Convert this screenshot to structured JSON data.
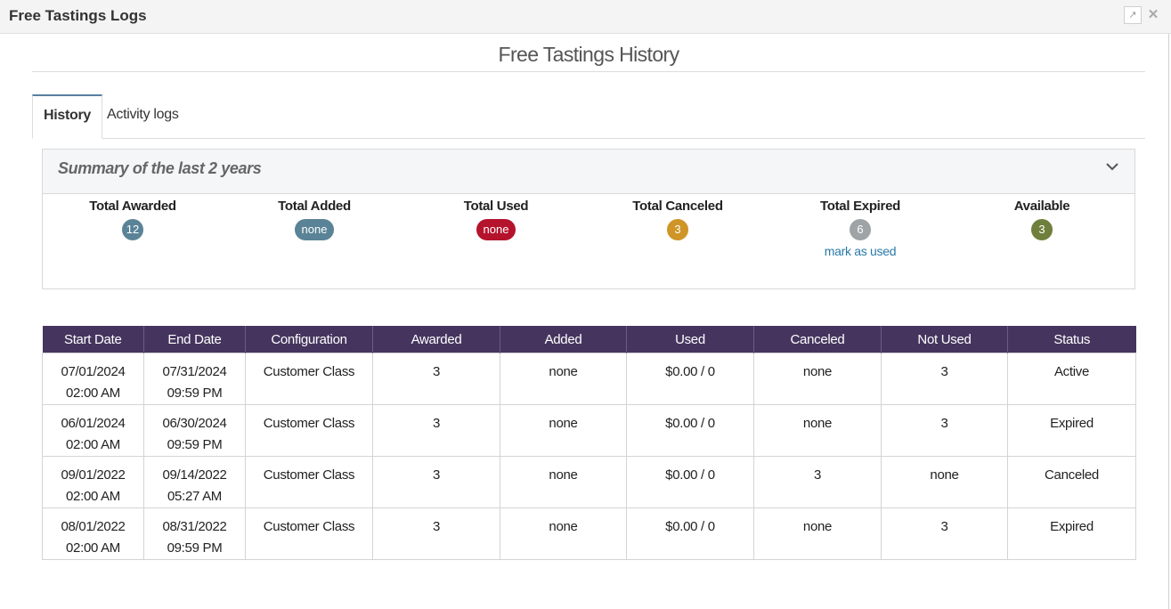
{
  "window": {
    "title": "Free Tastings Logs"
  },
  "page": {
    "heading": "Free Tastings History"
  },
  "tabs": [
    {
      "label": "History",
      "active": true
    },
    {
      "label": "Activity logs",
      "active": false
    }
  ],
  "summary": {
    "title": "Summary of the last 2 years",
    "stats": [
      {
        "label": "Total Awarded",
        "value": "12",
        "color": "#5a8397"
      },
      {
        "label": "Total Added",
        "value": "none",
        "color": "#5a8397"
      },
      {
        "label": "Total Used",
        "value": "none",
        "color": "#b5132c"
      },
      {
        "label": "Total Canceled",
        "value": "3",
        "color": "#cf9526"
      },
      {
        "label": "Total Expired",
        "value": "6",
        "color": "#9ea3a6",
        "link": "mark as used"
      },
      {
        "label": "Available",
        "value": "3",
        "color": "#6f7f3c"
      }
    ]
  },
  "table": {
    "header_color": "#45355e",
    "columns": [
      "Start Date",
      "End Date",
      "Configuration",
      "Awarded",
      "Added",
      "Used",
      "Canceled",
      "Not Used",
      "Status"
    ],
    "rows": [
      [
        "07/01/2024 02:00 AM",
        "07/31/2024 09:59 PM",
        "Customer Class",
        "3",
        "none",
        "$0.00 / 0",
        "none",
        "3",
        "Active"
      ],
      [
        "06/01/2024 02:00 AM",
        "06/30/2024 09:59 PM",
        "Customer Class",
        "3",
        "none",
        "$0.00 / 0",
        "none",
        "3",
        "Expired"
      ],
      [
        "09/01/2022 02:00 AM",
        "09/14/2022 05:27 AM",
        "Customer Class",
        "3",
        "none",
        "$0.00 / 0",
        "3",
        "none",
        "Canceled"
      ],
      [
        "08/01/2022 02:00 AM",
        "08/31/2022 09:59 PM",
        "Customer Class",
        "3",
        "none",
        "$0.00 / 0",
        "none",
        "3",
        "Expired"
      ]
    ]
  }
}
